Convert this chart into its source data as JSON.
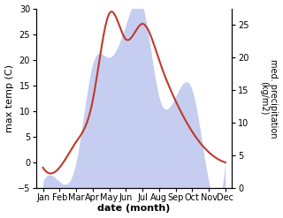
{
  "months": [
    "Jan",
    "Feb",
    "Mar",
    "Apr",
    "May",
    "Jun",
    "Jul",
    "Aug",
    "Sep",
    "Oct",
    "Nov",
    "Dec"
  ],
  "month_indices": [
    0,
    1,
    2,
    3,
    4,
    5,
    6,
    7,
    8,
    9,
    10,
    11
  ],
  "temperature": [
    -1,
    -1,
    4,
    12,
    29,
    24,
    27,
    20,
    12,
    6,
    2,
    0
  ],
  "precipitation": [
    1,
    1,
    4,
    19,
    20,
    25,
    28,
    14,
    14,
    15,
    1,
    4
  ],
  "temp_color": "#c0392b",
  "precip_fill_color": "#c5cef0",
  "precip_edge_color": "#c5cef0",
  "background_color": "#ffffff",
  "ylabel_left": "max temp (C)",
  "ylabel_right": "med. precipitation\n(kg/m2)",
  "xlabel": "date (month)",
  "ylim_left": [
    -5,
    30
  ],
  "ylim_right": [
    0,
    27.5
  ],
  "precip_scale": 27.5,
  "temp_range": 35,
  "temp_min": -5
}
